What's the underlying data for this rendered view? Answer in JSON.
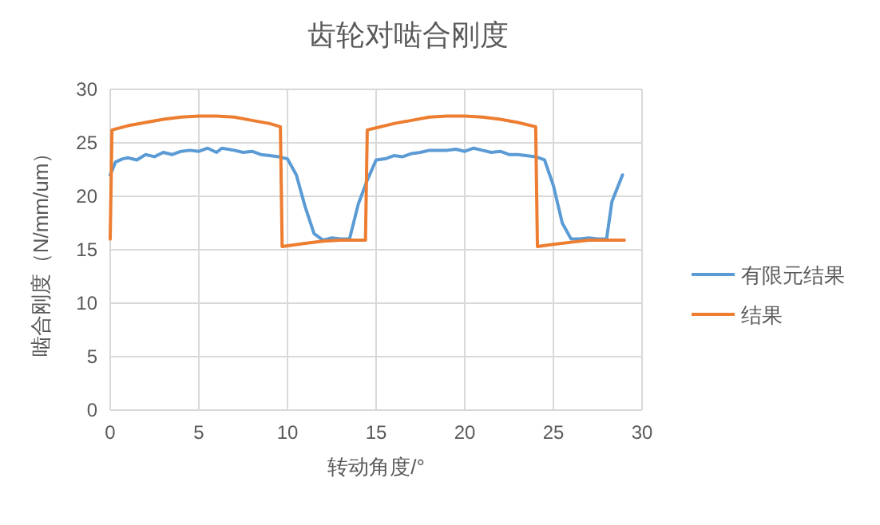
{
  "chart_data": {
    "type": "line",
    "title": "齿轮对啮合刚度",
    "xlabel": "转动角度/°",
    "ylabel": "啮合刚度（N/mm/um）",
    "xlim": [
      0,
      30
    ],
    "xticks": [
      0,
      5,
      10,
      15,
      20,
      25,
      30
    ],
    "ylim": [
      0,
      30
    ],
    "yticks": [
      0,
      5,
      10,
      15,
      20,
      25,
      30
    ],
    "grid": true,
    "legend": "right",
    "marker": "none",
    "line_style": "solid",
    "series": [
      {
        "name": "有限元结果",
        "color": "#5b9bd5",
        "x": [
          0,
          0.3,
          0.7,
          1,
          1.5,
          2,
          2.5,
          3,
          3.5,
          4,
          4.5,
          5,
          5.5,
          6,
          6.3,
          7,
          7.5,
          8,
          8.5,
          9,
          9.5,
          10,
          10.5,
          11,
          11.5,
          12,
          12.5,
          13,
          13.5,
          14,
          14.5,
          15,
          15.5,
          16,
          16.5,
          17,
          17.5,
          18,
          19,
          19.5,
          20,
          20.5,
          21,
          21.5,
          22,
          22.5,
          23,
          24,
          24.5,
          25,
          25.5,
          26,
          26.5,
          27,
          27.5,
          28,
          28.3,
          28.9
        ],
        "values": [
          22,
          23.2,
          23.5,
          23.6,
          23.4,
          23.9,
          23.7,
          24.1,
          23.9,
          24.2,
          24.3,
          24.2,
          24.5,
          24.1,
          24.5,
          24.3,
          24.1,
          24.2,
          23.9,
          23.8,
          23.7,
          23.5,
          22,
          19,
          16.5,
          15.9,
          16.1,
          16,
          16,
          19.3,
          21.5,
          23.4,
          23.5,
          23.8,
          23.7,
          24,
          24.1,
          24.3,
          24.3,
          24.4,
          24.2,
          24.5,
          24.3,
          24.1,
          24.2,
          23.9,
          23.9,
          23.7,
          23.4,
          21,
          17.5,
          16,
          16,
          16.1,
          16,
          16,
          19.5,
          22
        ]
      },
      {
        "name": "结果",
        "color": "#ed7d31",
        "x": [
          0,
          0.1,
          1,
          2,
          3,
          4,
          5,
          6,
          7,
          8,
          9,
          9.6,
          9.7,
          11,
          12,
          13,
          14.4,
          14.5,
          15,
          16,
          17,
          18,
          19,
          20,
          21,
          22,
          23,
          24,
          24.1,
          25,
          26,
          27,
          28,
          29
        ],
        "values": [
          16,
          26.2,
          26.6,
          26.9,
          27.2,
          27.4,
          27.5,
          27.5,
          27.4,
          27.1,
          26.8,
          26.5,
          15.3,
          15.6,
          15.8,
          15.9,
          15.9,
          26.2,
          26.4,
          26.8,
          27.1,
          27.4,
          27.5,
          27.5,
          27.4,
          27.2,
          26.9,
          26.5,
          15.3,
          15.5,
          15.7,
          15.9,
          15.9,
          15.9
        ]
      }
    ]
  }
}
